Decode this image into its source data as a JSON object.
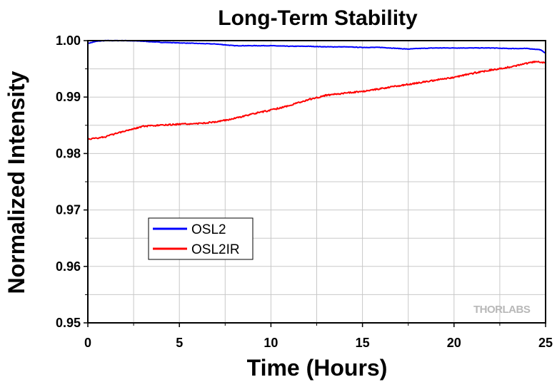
{
  "chart_data": {
    "type": "line",
    "title": "Long-Term Stability",
    "xlabel": "Time (Hours)",
    "ylabel": "Normalized Intensity",
    "xlim": [
      0,
      25
    ],
    "ylim": [
      0.95,
      1.0
    ],
    "x_ticks": [
      0,
      5,
      10,
      15,
      20,
      25
    ],
    "x_tick_labels": [
      "0",
      "5",
      "10",
      "15",
      "20",
      "25"
    ],
    "y_ticks": [
      0.95,
      0.96,
      0.97,
      0.98,
      0.99,
      1.0
    ],
    "y_tick_labels": [
      "0.95",
      "0.96",
      "0.97",
      "0.98",
      "0.99",
      "1.00"
    ],
    "grid": true,
    "legend_position": "lower-left",
    "watermark": "THORLABS",
    "series": [
      {
        "name": "OSL2",
        "color": "#0000ff",
        "x": [
          0,
          0.5,
          1,
          2,
          3,
          4,
          5,
          6,
          7,
          8,
          9,
          10,
          11,
          12,
          13,
          14,
          15,
          16,
          17,
          17.5,
          18,
          19,
          20,
          21,
          22,
          23,
          24,
          24.7,
          25
        ],
        "y": [
          0.9995,
          0.9999,
          1.0,
          1.0,
          0.9999,
          0.9997,
          0.9996,
          0.9995,
          0.9994,
          0.9991,
          0.9991,
          0.9991,
          0.999,
          0.999,
          0.9989,
          0.9989,
          0.9988,
          0.9988,
          0.9986,
          0.9985,
          0.9986,
          0.9987,
          0.9987,
          0.9987,
          0.9987,
          0.9986,
          0.9986,
          0.9984,
          0.9978
        ]
      },
      {
        "name": "OSL2IR",
        "color": "#ff0000",
        "x": [
          0,
          1,
          2,
          3,
          4,
          5,
          6,
          7,
          8,
          9,
          10,
          11,
          12,
          13,
          14,
          15,
          16,
          17,
          18,
          19,
          20,
          21,
          22,
          23,
          24,
          24.5,
          25
        ],
        "y": [
          0.9825,
          0.983,
          0.984,
          0.9848,
          0.985,
          0.9852,
          0.9853,
          0.9856,
          0.9862,
          0.987,
          0.9877,
          0.9885,
          0.9895,
          0.9903,
          0.9907,
          0.991,
          0.9915,
          0.992,
          0.9925,
          0.993,
          0.9935,
          0.9942,
          0.9948,
          0.9953,
          0.996,
          0.9963,
          0.996
        ]
      }
    ]
  }
}
